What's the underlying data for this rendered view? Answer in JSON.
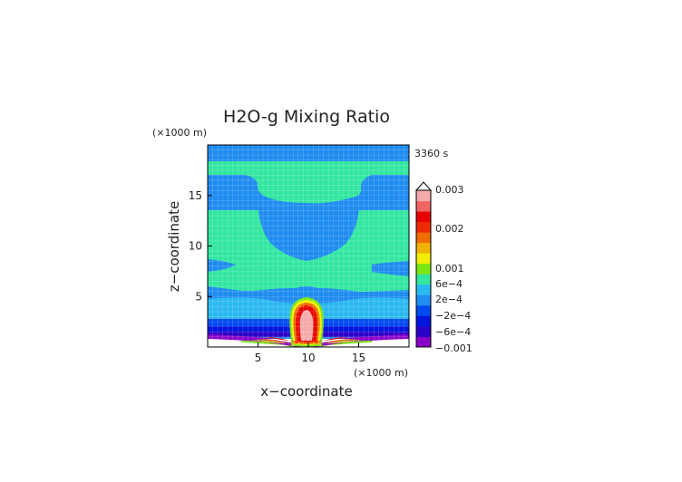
{
  "chart_data": {
    "type": "heatmap",
    "title": "H2O-g Mixing Ratio",
    "time_label": "3360 s",
    "xlabel": "x−coordinate",
    "ylabel": "z−coordinate",
    "x_unit": "(×1000 m)",
    "y_unit": "(×1000 m)",
    "xlim": [
      0,
      20
    ],
    "ylim": [
      0,
      20
    ],
    "x_ticks": [
      5,
      10,
      15
    ],
    "y_ticks": [
      5,
      10,
      15
    ],
    "colorbar": {
      "labels": [
        "0.003",
        "0.002",
        "0.001",
        "6e−4",
        "2e−4",
        "−2e−4",
        "−6e−4",
        "−0.001"
      ],
      "levels": [
        -0.001,
        -0.0008,
        -0.0006,
        -0.0004,
        -0.0002,
        0,
        0.0002,
        0.0004,
        0.0006,
        0.0008,
        0.001,
        0.0015,
        0.002,
        0.0025,
        0.003
      ],
      "colors": [
        "#8a00c8",
        "#2a00c8",
        "#0015e0",
        "#0048f0",
        "#1e8cf0",
        "#2ab8f0",
        "#32e6a0",
        "#7ae614",
        "#f0f000",
        "#f0b400",
        "#f06e00",
        "#f02a00",
        "#e80000",
        "#f06464",
        "#f4aaaa"
      ]
    },
    "field_description": "vapour perturbation: background bands of about -2e-4 and 0; plume of up to 0.003 centred at x=10, rising to z=4; negative layer below z=1"
  }
}
